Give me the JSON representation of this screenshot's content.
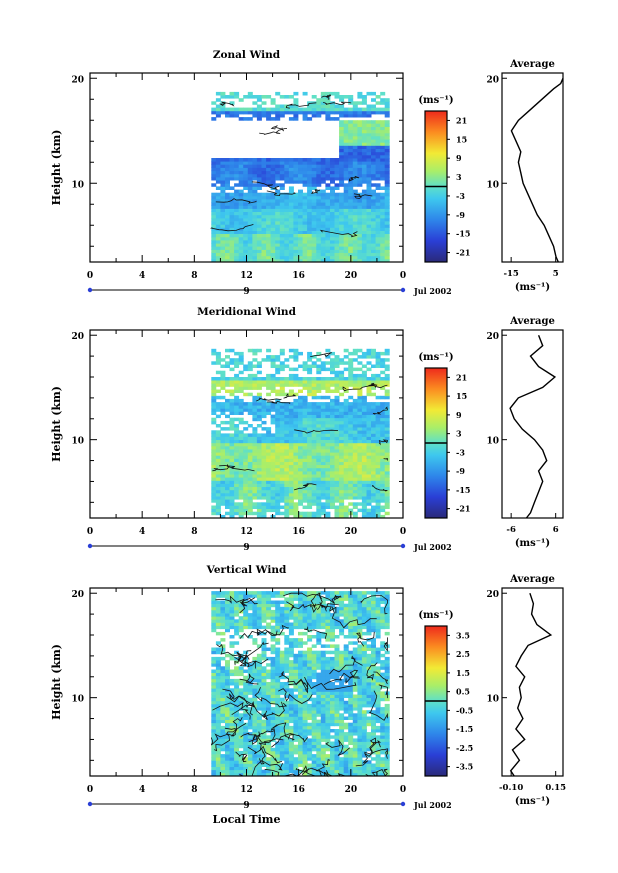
{
  "chart_data": [
    {
      "type": "heatmap",
      "title": "Zonal Wind",
      "ylabel": "Height (km)",
      "xlabel": "",
      "x_ticks": [
        "0",
        "4",
        "8",
        "12",
        "16",
        "20",
        "0"
      ],
      "y_ticks": [
        "20",
        "10"
      ],
      "date_label": "9",
      "month_label": "Jul 2002",
      "xlim": [
        0,
        24
      ],
      "ylim": [
        2.5,
        20.5
      ],
      "data_x_range": [
        9.3,
        22.8
      ],
      "data_y_range": [
        2.5,
        18.5
      ],
      "colorbar": {
        "unit": "(ms⁻¹)",
        "min": -24,
        "max": 24,
        "ticks": [
          "21",
          "15",
          "9",
          "3",
          "-3",
          "-9",
          "-15",
          "-21"
        ]
      },
      "average_profile": {
        "title": "Average",
        "xlabel": "(ms⁻¹)",
        "x_ticks": [
          "-15",
          "5"
        ],
        "y_ticks": [
          "20",
          "10"
        ],
        "xlim": [
          -20,
          6
        ],
        "heights": [
          2.5,
          3,
          4,
          5,
          6,
          7,
          8,
          9,
          10,
          11,
          12,
          13,
          14,
          15,
          16,
          17,
          18,
          19,
          19.5,
          20
        ],
        "values": [
          4,
          3,
          2,
          0,
          -2,
          -5,
          -7,
          -9,
          -11,
          -12,
          -13,
          -12,
          -14,
          -16,
          -13,
          -8,
          -3,
          2,
          5,
          6
        ]
      }
    },
    {
      "type": "heatmap",
      "title": "Meridional Wind",
      "ylabel": "Height (km)",
      "xlabel": "",
      "x_ticks": [
        "0",
        "4",
        "8",
        "12",
        "16",
        "20",
        "0"
      ],
      "y_ticks": [
        "20",
        "10"
      ],
      "date_label": "9",
      "month_label": "Jul 2002",
      "xlim": [
        0,
        24
      ],
      "ylim": [
        2.5,
        20.5
      ],
      "data_x_range": [
        9.3,
        22.8
      ],
      "data_y_range": [
        2.5,
        18.5
      ],
      "colorbar": {
        "unit": "(ms⁻¹)",
        "min": -24,
        "max": 24,
        "ticks": [
          "21",
          "15",
          "9",
          "3",
          "-3",
          "-9",
          "-15",
          "-21"
        ]
      },
      "average_profile": {
        "title": "Average",
        "xlabel": "(ms⁻¹)",
        "x_ticks": [
          "-6",
          "6"
        ],
        "y_ticks": [
          "20",
          "10"
        ],
        "xlim": [
          -8,
          7
        ],
        "heights": [
          2.5,
          3,
          4,
          5,
          6,
          7,
          8,
          9,
          10,
          11,
          12,
          13,
          14,
          15,
          16,
          17,
          18,
          19,
          20
        ],
        "values": [
          -2,
          -1,
          0,
          1,
          2,
          1,
          3,
          2,
          0,
          -3,
          -5,
          -6,
          -4,
          2,
          5,
          1,
          -1,
          2,
          1
        ]
      }
    },
    {
      "type": "heatmap",
      "title": "Vertical Wind",
      "ylabel": "Height (km)",
      "xlabel": "Local Time",
      "x_ticks": [
        "0",
        "4",
        "8",
        "12",
        "16",
        "20",
        "0"
      ],
      "y_ticks": [
        "20",
        "10"
      ],
      "date_label": "9",
      "month_label": "Jul 2002",
      "xlim": [
        0,
        24
      ],
      "ylim": [
        2.5,
        20.5
      ],
      "data_x_range": [
        9.3,
        22.8
      ],
      "data_y_range": [
        2.5,
        20
      ],
      "colorbar": {
        "unit": "(ms⁻¹)",
        "min": -4,
        "max": 4,
        "ticks": [
          "3.5",
          "2.5",
          "1.5",
          "0.5",
          "-0.5",
          "-1.5",
          "-2.5",
          "-3.5"
        ]
      },
      "average_profile": {
        "title": "Average",
        "xlabel": "(ms⁻¹)",
        "x_ticks": [
          "-0.10",
          "0.15"
        ],
        "y_ticks": [
          "20",
          "10"
        ],
        "xlim": [
          -0.15,
          0.2
        ],
        "heights": [
          2.5,
          3,
          4,
          5,
          6,
          7,
          8,
          9,
          10,
          11,
          12,
          13,
          14,
          15,
          16,
          17,
          18,
          19,
          20
        ],
        "values": [
          -0.08,
          -0.1,
          -0.05,
          -0.09,
          -0.02,
          -0.07,
          -0.03,
          -0.06,
          -0.04,
          -0.05,
          -0.02,
          -0.07,
          -0.04,
          0.0,
          0.13,
          0.05,
          0.02,
          0.03,
          0.01
        ]
      }
    }
  ]
}
